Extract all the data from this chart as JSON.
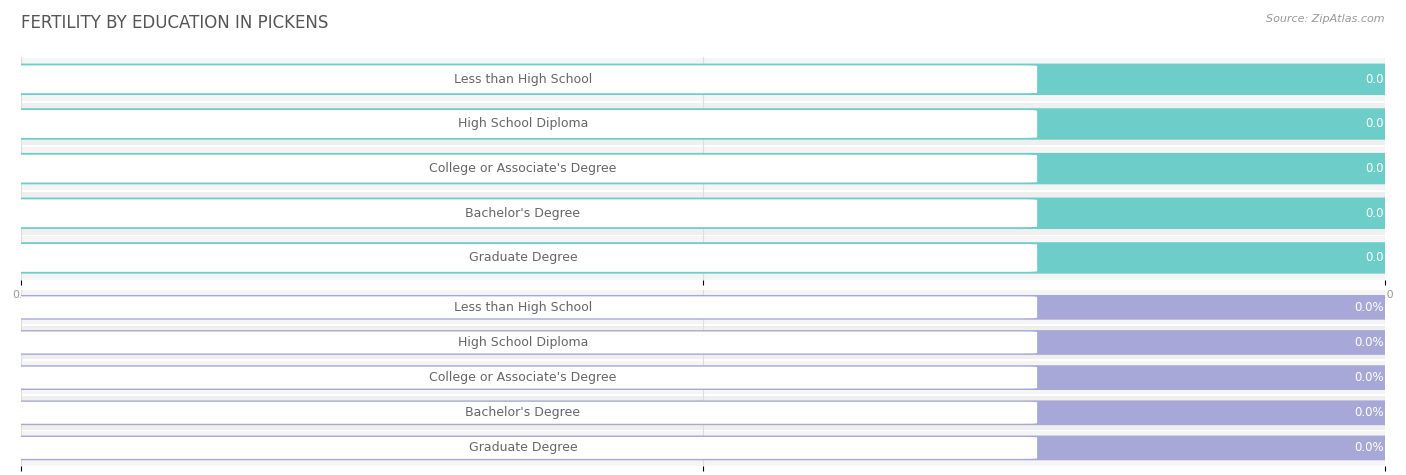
{
  "title": "FERTILITY BY EDUCATION IN PICKENS",
  "source": "Source: ZipAtlas.com",
  "categories": [
    "Less than High School",
    "High School Diploma",
    "College or Associate's Degree",
    "Bachelor's Degree",
    "Graduate Degree"
  ],
  "values_top": [
    0.0,
    0.0,
    0.0,
    0.0,
    0.0
  ],
  "values_bottom": [
    0.0,
    0.0,
    0.0,
    0.0,
    0.0
  ],
  "bar_color_top": "#6dcdc8",
  "bar_color_bottom": "#a8a8d8",
  "label_bg_color": "#f5f5f5",
  "row_sep_color": "#e8e8e8",
  "label_text_color": "#666666",
  "value_text_color": "#ffffff",
  "title_color": "#555555",
  "source_color": "#999999",
  "grid_color": "#dddddd",
  "tick_color": "#999999",
  "background_color": "#ffffff",
  "title_fontsize": 12,
  "label_fontsize": 9,
  "value_fontsize": 8.5,
  "tick_fontsize": 8,
  "source_fontsize": 8
}
